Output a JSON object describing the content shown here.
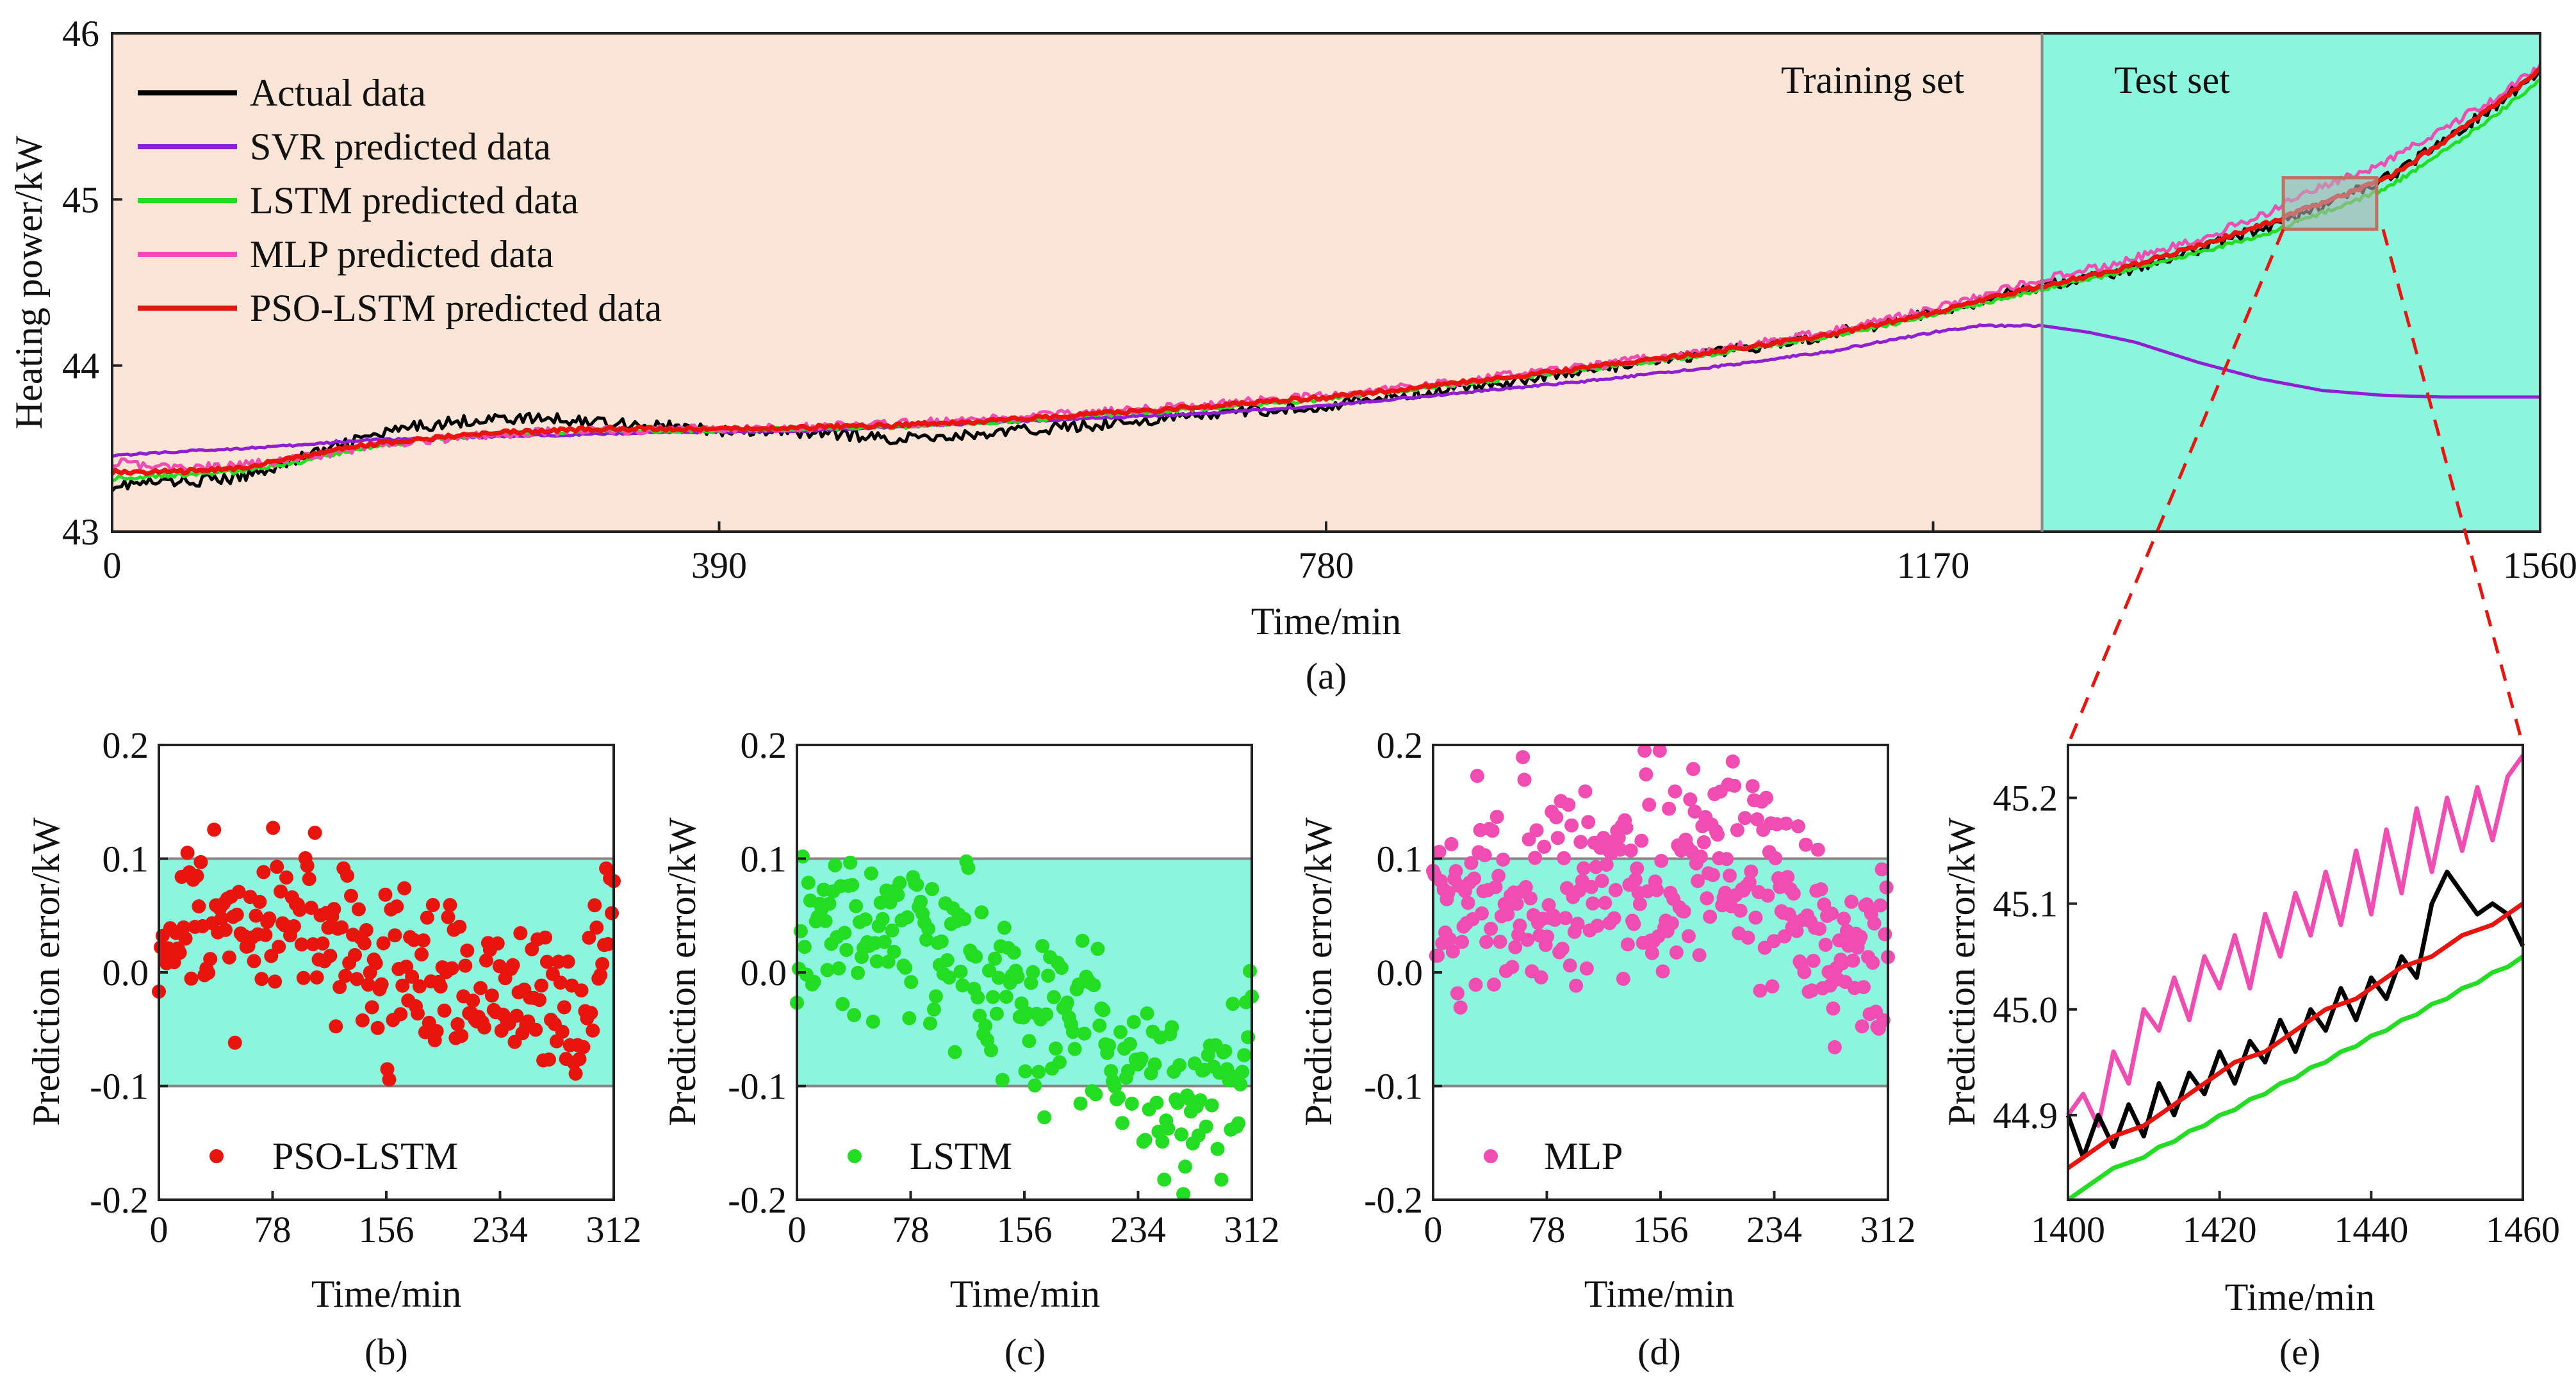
{
  "colors": {
    "actual": "#000000",
    "svr": "#8f1fd0",
    "lstm": "#22dd22",
    "mlp": "#f04db2",
    "pso": "#e8150f",
    "train_bg": "#fbe5d6",
    "test_bg": "#8cf5de",
    "err_band": "#8cf5de",
    "zoom_box": "#b0b0b0"
  },
  "chart_data": [
    {
      "id": "a",
      "type": "line",
      "caption": "(a)",
      "xlabel": "Time/min",
      "ylabel": "Heating power/kW",
      "xlim": [
        0,
        1560
      ],
      "ylim": [
        43,
        46
      ],
      "xticks": [
        0,
        390,
        780,
        1170,
        1560
      ],
      "yticks": [
        43,
        44,
        45,
        46
      ],
      "regions": [
        {
          "name": "Training set",
          "from": 0,
          "to": 1240
        },
        {
          "name": "Test set",
          "from": 1240,
          "to": 1560
        }
      ],
      "zoom_window": {
        "x": [
          1400,
          1460
        ],
        "y": [
          44.82,
          45.25
        ]
      },
      "series": [
        {
          "name": "Actual data",
          "key": "actual",
          "x": [
            0,
            40,
            80,
            120,
            160,
            200,
            240,
            280,
            320,
            360,
            400,
            450,
            500,
            550,
            600,
            650,
            700,
            780,
            860,
            940,
            1020,
            1100,
            1170,
            1240,
            1290,
            1340,
            1380,
            1420,
            1460,
            1500,
            1530,
            1560
          ],
          "y": [
            43.28,
            43.3,
            43.32,
            43.44,
            43.56,
            43.64,
            43.68,
            43.68,
            43.66,
            43.63,
            43.6,
            43.6,
            43.56,
            43.58,
            43.62,
            43.66,
            43.7,
            43.76,
            43.86,
            43.96,
            44.06,
            44.18,
            44.32,
            44.48,
            44.56,
            44.7,
            44.82,
            44.96,
            45.12,
            45.36,
            45.56,
            45.78
          ]
        },
        {
          "name": "SVR predicted data",
          "key": "svr",
          "x": [
            0,
            40,
            80,
            120,
            160,
            200,
            240,
            280,
            320,
            360,
            400,
            450,
            500,
            550,
            600,
            650,
            700,
            780,
            860,
            940,
            1020,
            1100,
            1170,
            1200,
            1240,
            1270,
            1300,
            1340,
            1380,
            1420,
            1460,
            1500,
            1560
          ],
          "y": [
            43.46,
            43.48,
            43.5,
            43.52,
            43.55,
            43.56,
            43.57,
            43.58,
            43.59,
            43.6,
            43.6,
            43.61,
            43.63,
            43.65,
            43.67,
            43.69,
            43.71,
            43.76,
            43.83,
            43.9,
            43.98,
            44.08,
            44.2,
            44.24,
            44.24,
            44.2,
            44.14,
            44.02,
            43.92,
            43.85,
            43.82,
            43.81,
            43.81
          ]
        },
        {
          "name": "LSTM predicted data",
          "key": "lstm",
          "x": [
            0,
            40,
            80,
            120,
            160,
            200,
            240,
            280,
            320,
            360,
            400,
            450,
            500,
            550,
            600,
            650,
            700,
            780,
            860,
            940,
            1020,
            1100,
            1170,
            1240,
            1290,
            1340,
            1380,
            1420,
            1460,
            1500,
            1530,
            1560
          ],
          "y": [
            43.32,
            43.34,
            43.36,
            43.42,
            43.5,
            43.55,
            43.58,
            43.6,
            43.61,
            43.61,
            43.61,
            43.62,
            43.63,
            43.65,
            43.68,
            43.71,
            43.74,
            43.8,
            43.88,
            43.97,
            44.06,
            44.17,
            44.3,
            44.46,
            44.56,
            44.68,
            44.78,
            44.92,
            45.06,
            45.3,
            45.5,
            45.72
          ]
        },
        {
          "name": "MLP predicted data",
          "key": "mlp",
          "x": [
            0,
            40,
            80,
            120,
            160,
            200,
            240,
            280,
            320,
            360,
            400,
            450,
            500,
            550,
            600,
            650,
            700,
            780,
            860,
            940,
            1020,
            1100,
            1170,
            1240,
            1290,
            1340,
            1380,
            1420,
            1460,
            1500,
            1530,
            1560
          ],
          "y": [
            43.42,
            43.38,
            43.4,
            43.44,
            43.5,
            43.55,
            43.58,
            43.6,
            43.61,
            43.62,
            43.62,
            43.63,
            43.65,
            43.67,
            43.7,
            43.73,
            43.76,
            43.82,
            43.9,
            43.99,
            44.08,
            44.2,
            44.34,
            44.52,
            44.62,
            44.76,
            44.9,
            45.08,
            45.22,
            45.44,
            45.6,
            45.8
          ]
        },
        {
          "name": "PSO-LSTM predicted data",
          "key": "pso",
          "x": [
            0,
            40,
            80,
            120,
            160,
            200,
            240,
            280,
            320,
            360,
            400,
            450,
            500,
            550,
            600,
            650,
            700,
            780,
            860,
            940,
            1020,
            1100,
            1170,
            1240,
            1290,
            1340,
            1380,
            1420,
            1460,
            1500,
            1530,
            1560
          ],
          "y": [
            43.36,
            43.36,
            43.38,
            43.45,
            43.52,
            43.56,
            43.59,
            43.61,
            43.62,
            43.62,
            43.62,
            43.63,
            43.64,
            43.66,
            43.69,
            43.72,
            43.75,
            43.81,
            43.89,
            43.98,
            44.07,
            44.18,
            44.32,
            44.48,
            44.58,
            44.72,
            44.84,
            44.98,
            45.12,
            45.36,
            45.56,
            45.78
          ]
        }
      ]
    },
    {
      "id": "b",
      "type": "scatter",
      "caption": "(b)",
      "xlabel": "Time/min",
      "ylabel": "Prediction error/kW",
      "legend": "PSO-LSTM",
      "key": "pso",
      "xlim": [
        0,
        312
      ],
      "ylim": [
        -0.2,
        0.2
      ],
      "xticks": [
        0,
        78,
        156,
        234,
        312
      ],
      "yticks": [
        -0.2,
        -0.1,
        0.0,
        0.1,
        0.2
      ],
      "ytick_labels": [
        "-0.2",
        "-0.1",
        "0.0",
        "0.1",
        "0.2"
      ],
      "band": [
        -0.1,
        0.1
      ],
      "trend": [
        [
          0,
          0.035
        ],
        [
          60,
          0.04
        ],
        [
          110,
          0.045
        ],
        [
          150,
          0.0
        ],
        [
          200,
          -0.01
        ],
        [
          250,
          -0.03
        ],
        [
          290,
          -0.045
        ],
        [
          302,
          0.02
        ],
        [
          312,
          0.09
        ]
      ],
      "noise": 0.035,
      "count": 240,
      "seed": 11
    },
    {
      "id": "c",
      "type": "scatter",
      "caption": "(c)",
      "xlabel": "Time/min",
      "ylabel": "Prediction error/kW",
      "legend": "LSTM",
      "key": "lstm",
      "xlim": [
        0,
        312
      ],
      "ylim": [
        -0.2,
        0.2
      ],
      "xticks": [
        0,
        78,
        156,
        234,
        312
      ],
      "yticks": [
        -0.2,
        -0.1,
        0.0,
        0.1,
        0.2
      ],
      "ytick_labels": [
        "-0.2",
        "-0.1",
        "0.0",
        "0.1",
        "0.2"
      ],
      "band": [
        -0.1,
        0.1
      ],
      "trend": [
        [
          0,
          0.05
        ],
        [
          60,
          0.025
        ],
        [
          110,
          0.02
        ],
        [
          150,
          -0.03
        ],
        [
          200,
          -0.05
        ],
        [
          250,
          -0.11
        ],
        [
          285,
          -0.13
        ],
        [
          300,
          -0.09
        ],
        [
          312,
          -0.02
        ]
      ],
      "noise": 0.035,
      "count": 240,
      "seed": 23
    },
    {
      "id": "d",
      "type": "scatter",
      "caption": "(d)",
      "xlabel": "Time/min",
      "ylabel": "Prediction error/kW",
      "legend": "MLP",
      "key": "mlp",
      "xlim": [
        0,
        312
      ],
      "ylim": [
        -0.2,
        0.2
      ],
      "xticks": [
        0,
        78,
        156,
        234,
        312
      ],
      "yticks": [
        -0.2,
        -0.1,
        0.0,
        0.1,
        0.2
      ],
      "ytick_labels": [
        "-0.2",
        "-0.1",
        "0.0",
        "0.1",
        "0.2"
      ],
      "band": [
        -0.1,
        0.1
      ],
      "trend": [
        [
          0,
          0.06
        ],
        [
          60,
          0.07
        ],
        [
          110,
          0.08
        ],
        [
          160,
          0.09
        ],
        [
          200,
          0.095
        ],
        [
          250,
          0.07
        ],
        [
          280,
          0.03
        ],
        [
          312,
          -0.01
        ]
      ],
      "noise": 0.045,
      "count": 300,
      "seed": 37
    },
    {
      "id": "e",
      "type": "line",
      "caption": "(e)",
      "xlabel": "Time/min",
      "ylabel": "Prediction error/kW",
      "xlim": [
        1400,
        1460
      ],
      "ylim": [
        44.82,
        45.25
      ],
      "xticks": [
        1400,
        1420,
        1440,
        1460
      ],
      "yticks": [
        44.9,
        45.0,
        45.1,
        45.2
      ],
      "ytick_labels": [
        "44.9",
        "45.0",
        "45.1",
        "45.2"
      ],
      "series": [
        {
          "name": "MLP predicted data",
          "key": "mlp",
          "x": [
            1400,
            1402,
            1404,
            1406,
            1408,
            1410,
            1412,
            1414,
            1416,
            1418,
            1420,
            1422,
            1424,
            1426,
            1428,
            1430,
            1432,
            1434,
            1436,
            1438,
            1440,
            1442,
            1444,
            1446,
            1448,
            1450,
            1452,
            1454,
            1456,
            1458,
            1460
          ],
          "y": [
            44.9,
            44.92,
            44.89,
            44.96,
            44.93,
            45.0,
            44.98,
            45.03,
            44.99,
            45.05,
            45.02,
            45.07,
            45.02,
            45.09,
            45.05,
            45.11,
            45.07,
            45.13,
            45.08,
            45.15,
            45.09,
            45.17,
            45.11,
            45.19,
            45.13,
            45.2,
            45.15,
            45.21,
            45.16,
            45.22,
            45.24
          ]
        },
        {
          "name": "Actual data",
          "key": "actual",
          "x": [
            1400,
            1402,
            1404,
            1406,
            1408,
            1410,
            1412,
            1414,
            1416,
            1418,
            1420,
            1422,
            1424,
            1426,
            1428,
            1430,
            1432,
            1434,
            1436,
            1438,
            1440,
            1442,
            1444,
            1446,
            1448,
            1450,
            1452,
            1454,
            1456,
            1458,
            1460
          ],
          "y": [
            44.9,
            44.86,
            44.9,
            44.87,
            44.91,
            44.88,
            44.93,
            44.9,
            44.94,
            44.92,
            44.96,
            44.93,
            44.97,
            44.95,
            44.99,
            44.96,
            45.0,
            44.98,
            45.02,
            44.99,
            45.03,
            45.01,
            45.05,
            45.03,
            45.1,
            45.13,
            45.11,
            45.09,
            45.1,
            45.09,
            45.06
          ]
        },
        {
          "name": "PSO-LSTM predicted data",
          "key": "pso",
          "x": [
            1400,
            1402,
            1404,
            1406,
            1408,
            1410,
            1412,
            1414,
            1416,
            1418,
            1420,
            1422,
            1424,
            1426,
            1428,
            1430,
            1432,
            1434,
            1436,
            1438,
            1440,
            1442,
            1444,
            1446,
            1448,
            1450,
            1452,
            1454,
            1456,
            1458,
            1460
          ],
          "y": [
            44.85,
            44.86,
            44.87,
            44.88,
            44.885,
            44.89,
            44.9,
            44.91,
            44.92,
            44.93,
            44.94,
            44.95,
            44.955,
            44.96,
            44.97,
            44.98,
            44.99,
            45.0,
            45.005,
            45.01,
            45.02,
            45.03,
            45.04,
            45.045,
            45.05,
            45.06,
            45.07,
            45.075,
            45.08,
            45.09,
            45.1
          ]
        },
        {
          "name": "LSTM predicted data",
          "key": "lstm",
          "x": [
            1400,
            1402,
            1404,
            1406,
            1408,
            1410,
            1412,
            1414,
            1416,
            1418,
            1420,
            1422,
            1424,
            1426,
            1428,
            1430,
            1432,
            1434,
            1436,
            1438,
            1440,
            1442,
            1444,
            1446,
            1448,
            1450,
            1452,
            1454,
            1456,
            1458,
            1460
          ],
          "y": [
            44.82,
            44.83,
            44.84,
            44.85,
            44.855,
            44.86,
            44.87,
            44.875,
            44.885,
            44.89,
            44.9,
            44.905,
            44.915,
            44.92,
            44.93,
            44.935,
            44.945,
            44.95,
            44.96,
            44.965,
            44.975,
            44.98,
            44.99,
            44.995,
            45.005,
            45.01,
            45.02,
            45.025,
            45.035,
            45.04,
            45.05
          ]
        }
      ]
    }
  ]
}
